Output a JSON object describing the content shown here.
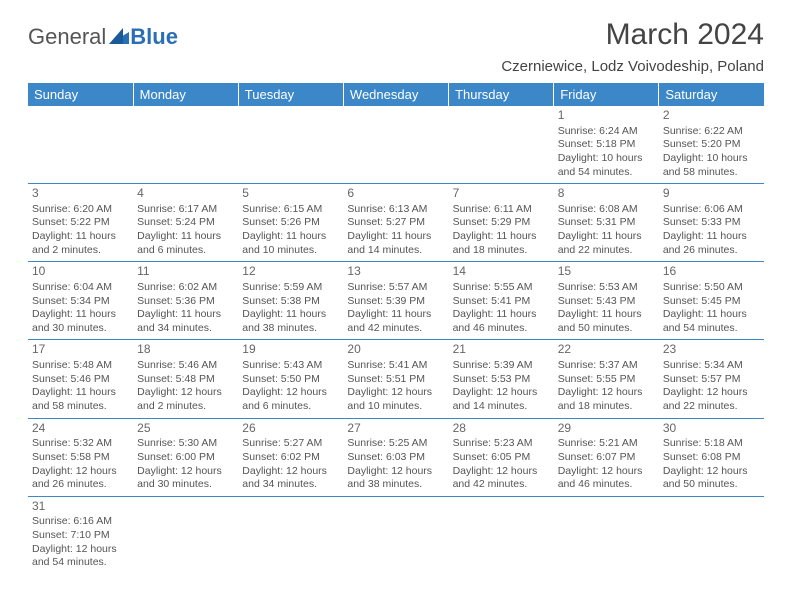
{
  "brand": {
    "part1": "General",
    "part2": "Blue"
  },
  "title": "March 2024",
  "location": "Czerniewice, Lodz Voivodeship, Poland",
  "colors": {
    "header_bg": "#3b87c8",
    "header_text": "#ffffff",
    "border": "#3b87c8",
    "text": "#555555",
    "title": "#444444"
  },
  "weekdays": [
    "Sunday",
    "Monday",
    "Tuesday",
    "Wednesday",
    "Thursday",
    "Friday",
    "Saturday"
  ],
  "weeks": [
    [
      null,
      null,
      null,
      null,
      null,
      {
        "n": "1",
        "sr": "Sunrise: 6:24 AM",
        "ss": "Sunset: 5:18 PM",
        "d1": "Daylight: 10 hours",
        "d2": "and 54 minutes."
      },
      {
        "n": "2",
        "sr": "Sunrise: 6:22 AM",
        "ss": "Sunset: 5:20 PM",
        "d1": "Daylight: 10 hours",
        "d2": "and 58 minutes."
      }
    ],
    [
      {
        "n": "3",
        "sr": "Sunrise: 6:20 AM",
        "ss": "Sunset: 5:22 PM",
        "d1": "Daylight: 11 hours",
        "d2": "and 2 minutes."
      },
      {
        "n": "4",
        "sr": "Sunrise: 6:17 AM",
        "ss": "Sunset: 5:24 PM",
        "d1": "Daylight: 11 hours",
        "d2": "and 6 minutes."
      },
      {
        "n": "5",
        "sr": "Sunrise: 6:15 AM",
        "ss": "Sunset: 5:26 PM",
        "d1": "Daylight: 11 hours",
        "d2": "and 10 minutes."
      },
      {
        "n": "6",
        "sr": "Sunrise: 6:13 AM",
        "ss": "Sunset: 5:27 PM",
        "d1": "Daylight: 11 hours",
        "d2": "and 14 minutes."
      },
      {
        "n": "7",
        "sr": "Sunrise: 6:11 AM",
        "ss": "Sunset: 5:29 PM",
        "d1": "Daylight: 11 hours",
        "d2": "and 18 minutes."
      },
      {
        "n": "8",
        "sr": "Sunrise: 6:08 AM",
        "ss": "Sunset: 5:31 PM",
        "d1": "Daylight: 11 hours",
        "d2": "and 22 minutes."
      },
      {
        "n": "9",
        "sr": "Sunrise: 6:06 AM",
        "ss": "Sunset: 5:33 PM",
        "d1": "Daylight: 11 hours",
        "d2": "and 26 minutes."
      }
    ],
    [
      {
        "n": "10",
        "sr": "Sunrise: 6:04 AM",
        "ss": "Sunset: 5:34 PM",
        "d1": "Daylight: 11 hours",
        "d2": "and 30 minutes."
      },
      {
        "n": "11",
        "sr": "Sunrise: 6:02 AM",
        "ss": "Sunset: 5:36 PM",
        "d1": "Daylight: 11 hours",
        "d2": "and 34 minutes."
      },
      {
        "n": "12",
        "sr": "Sunrise: 5:59 AM",
        "ss": "Sunset: 5:38 PM",
        "d1": "Daylight: 11 hours",
        "d2": "and 38 minutes."
      },
      {
        "n": "13",
        "sr": "Sunrise: 5:57 AM",
        "ss": "Sunset: 5:39 PM",
        "d1": "Daylight: 11 hours",
        "d2": "and 42 minutes."
      },
      {
        "n": "14",
        "sr": "Sunrise: 5:55 AM",
        "ss": "Sunset: 5:41 PM",
        "d1": "Daylight: 11 hours",
        "d2": "and 46 minutes."
      },
      {
        "n": "15",
        "sr": "Sunrise: 5:53 AM",
        "ss": "Sunset: 5:43 PM",
        "d1": "Daylight: 11 hours",
        "d2": "and 50 minutes."
      },
      {
        "n": "16",
        "sr": "Sunrise: 5:50 AM",
        "ss": "Sunset: 5:45 PM",
        "d1": "Daylight: 11 hours",
        "d2": "and 54 minutes."
      }
    ],
    [
      {
        "n": "17",
        "sr": "Sunrise: 5:48 AM",
        "ss": "Sunset: 5:46 PM",
        "d1": "Daylight: 11 hours",
        "d2": "and 58 minutes."
      },
      {
        "n": "18",
        "sr": "Sunrise: 5:46 AM",
        "ss": "Sunset: 5:48 PM",
        "d1": "Daylight: 12 hours",
        "d2": "and 2 minutes."
      },
      {
        "n": "19",
        "sr": "Sunrise: 5:43 AM",
        "ss": "Sunset: 5:50 PM",
        "d1": "Daylight: 12 hours",
        "d2": "and 6 minutes."
      },
      {
        "n": "20",
        "sr": "Sunrise: 5:41 AM",
        "ss": "Sunset: 5:51 PM",
        "d1": "Daylight: 12 hours",
        "d2": "and 10 minutes."
      },
      {
        "n": "21",
        "sr": "Sunrise: 5:39 AM",
        "ss": "Sunset: 5:53 PM",
        "d1": "Daylight: 12 hours",
        "d2": "and 14 minutes."
      },
      {
        "n": "22",
        "sr": "Sunrise: 5:37 AM",
        "ss": "Sunset: 5:55 PM",
        "d1": "Daylight: 12 hours",
        "d2": "and 18 minutes."
      },
      {
        "n": "23",
        "sr": "Sunrise: 5:34 AM",
        "ss": "Sunset: 5:57 PM",
        "d1": "Daylight: 12 hours",
        "d2": "and 22 minutes."
      }
    ],
    [
      {
        "n": "24",
        "sr": "Sunrise: 5:32 AM",
        "ss": "Sunset: 5:58 PM",
        "d1": "Daylight: 12 hours",
        "d2": "and 26 minutes."
      },
      {
        "n": "25",
        "sr": "Sunrise: 5:30 AM",
        "ss": "Sunset: 6:00 PM",
        "d1": "Daylight: 12 hours",
        "d2": "and 30 minutes."
      },
      {
        "n": "26",
        "sr": "Sunrise: 5:27 AM",
        "ss": "Sunset: 6:02 PM",
        "d1": "Daylight: 12 hours",
        "d2": "and 34 minutes."
      },
      {
        "n": "27",
        "sr": "Sunrise: 5:25 AM",
        "ss": "Sunset: 6:03 PM",
        "d1": "Daylight: 12 hours",
        "d2": "and 38 minutes."
      },
      {
        "n": "28",
        "sr": "Sunrise: 5:23 AM",
        "ss": "Sunset: 6:05 PM",
        "d1": "Daylight: 12 hours",
        "d2": "and 42 minutes."
      },
      {
        "n": "29",
        "sr": "Sunrise: 5:21 AM",
        "ss": "Sunset: 6:07 PM",
        "d1": "Daylight: 12 hours",
        "d2": "and 46 minutes."
      },
      {
        "n": "30",
        "sr": "Sunrise: 5:18 AM",
        "ss": "Sunset: 6:08 PM",
        "d1": "Daylight: 12 hours",
        "d2": "and 50 minutes."
      }
    ],
    [
      {
        "n": "31",
        "sr": "Sunrise: 6:16 AM",
        "ss": "Sunset: 7:10 PM",
        "d1": "Daylight: 12 hours",
        "d2": "and 54 minutes."
      },
      null,
      null,
      null,
      null,
      null,
      null
    ]
  ]
}
